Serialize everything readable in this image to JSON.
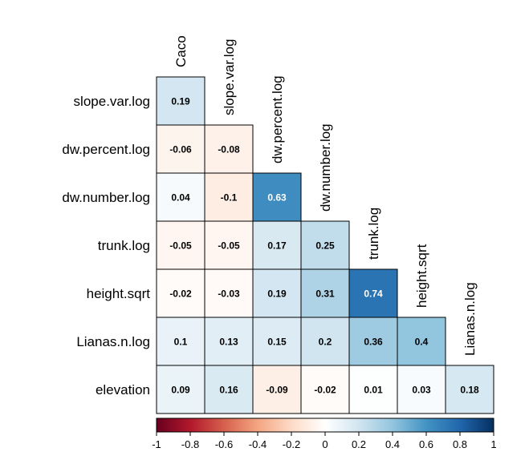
{
  "chart_data": {
    "type": "heatmap",
    "title": "",
    "columns": [
      "Caco",
      "slope.var.log",
      "dw.percent.log",
      "dw.number.log",
      "trunk.log",
      "height.sqrt",
      "Lianas.n.log"
    ],
    "rows": [
      "slope.var.log",
      "dw.percent.log",
      "dw.number.log",
      "trunk.log",
      "height.sqrt",
      "Lianas.n.log",
      "elevation"
    ],
    "values": [
      [
        0.19,
        null,
        null,
        null,
        null,
        null,
        null
      ],
      [
        -0.06,
        -0.08,
        null,
        null,
        null,
        null,
        null
      ],
      [
        0.04,
        -0.1,
        0.63,
        null,
        null,
        null,
        null
      ],
      [
        -0.05,
        -0.05,
        0.17,
        0.25,
        null,
        null,
        null
      ],
      [
        -0.02,
        -0.03,
        0.19,
        0.31,
        0.74,
        null,
        null
      ],
      [
        0.1,
        0.13,
        0.15,
        0.2,
        0.36,
        0.4,
        null
      ],
      [
        0.09,
        0.16,
        -0.09,
        -0.02,
        0.01,
        0.03,
        0.18
      ]
    ],
    "value_labels": [
      [
        "0.19",
        null,
        null,
        null,
        null,
        null,
        null
      ],
      [
        "-0.06",
        "-0.08",
        null,
        null,
        null,
        null,
        null
      ],
      [
        "0.04",
        "-0.1",
        "0.63",
        null,
        null,
        null,
        null
      ],
      [
        "-0.05",
        "-0.05",
        "0.17",
        "0.25",
        null,
        null,
        null
      ],
      [
        "-0.02",
        "-0.03",
        "0.19",
        "0.31",
        "0.74",
        null,
        null
      ],
      [
        "0.1",
        "0.13",
        "0.15",
        "0.2",
        "0.36",
        "0.4",
        null
      ],
      [
        "0.09",
        "0.16",
        "-0.09",
        "-0.02",
        "0.01",
        "0.03",
        "0.18"
      ]
    ],
    "color_scale": {
      "range": [
        -1,
        1
      ],
      "ticks": [
        "-1",
        "-0.8",
        "-0.6",
        "-0.4",
        "-0.2",
        "0",
        "0.2",
        "0.4",
        "0.6",
        "0.8",
        "1"
      ],
      "colors": [
        "#67001f",
        "#b2182b",
        "#d6604d",
        "#f4a582",
        "#fddbc7",
        "#ffffff",
        "#d1e5f0",
        "#92c5de",
        "#4393c3",
        "#2166ac",
        "#053061"
      ],
      "placement": "bottom"
    },
    "grid": true
  }
}
